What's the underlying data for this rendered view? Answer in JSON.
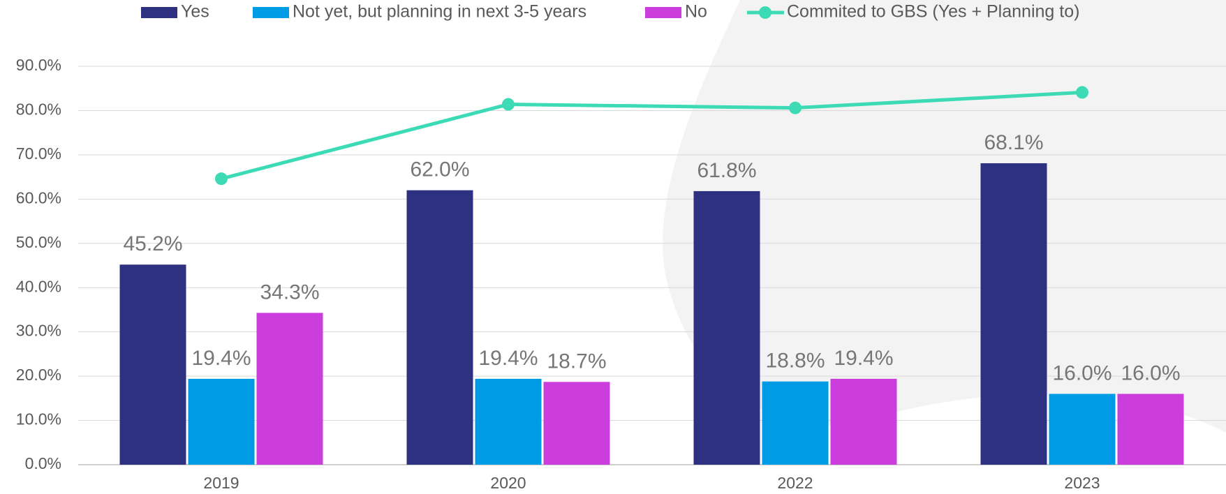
{
  "chart_data": {
    "type": "bar",
    "categories": [
      "2019",
      "2020",
      "2022",
      "2023"
    ],
    "series": [
      {
        "name": "Yes",
        "color": "#2e3080",
        "values": [
          45.2,
          62.0,
          61.8,
          68.1
        ],
        "value_labels": [
          "45.2%",
          "62.0%",
          "61.8%",
          "68.1%"
        ]
      },
      {
        "name": "Not yet, but planning in next 3-5 years",
        "color": "#009be5",
        "values": [
          19.4,
          19.4,
          18.8,
          16.0
        ],
        "value_labels": [
          "19.4%",
          "19.4%",
          "18.8%",
          "16.0%"
        ]
      },
      {
        "name": "No",
        "color": "#cc3ddd",
        "values": [
          34.3,
          18.7,
          19.4,
          16.0
        ],
        "value_labels": [
          "34.3%",
          "18.7%",
          "19.4%",
          "16.0%"
        ]
      },
      {
        "name": "Commited to GBS (Yes + Planning to)",
        "color": "#3ddbb5",
        "type": "line",
        "values": [
          64.6,
          81.4,
          80.6,
          84.1
        ]
      }
    ],
    "ylim": [
      0,
      90
    ],
    "yticks": [
      {
        "value": 0,
        "label": "0.0%"
      },
      {
        "value": 10,
        "label": "10.0%"
      },
      {
        "value": 20,
        "label": "20.0%"
      },
      {
        "value": 30,
        "label": "30.0%"
      },
      {
        "value": 40,
        "label": "40.0%"
      },
      {
        "value": 50,
        "label": "50.0%"
      },
      {
        "value": 60,
        "label": "60.0%"
      },
      {
        "value": 70,
        "label": "70.0%"
      },
      {
        "value": 80,
        "label": "80.0%"
      },
      {
        "value": 90,
        "label": "90.0%"
      }
    ],
    "grid": true,
    "legend": "top"
  }
}
